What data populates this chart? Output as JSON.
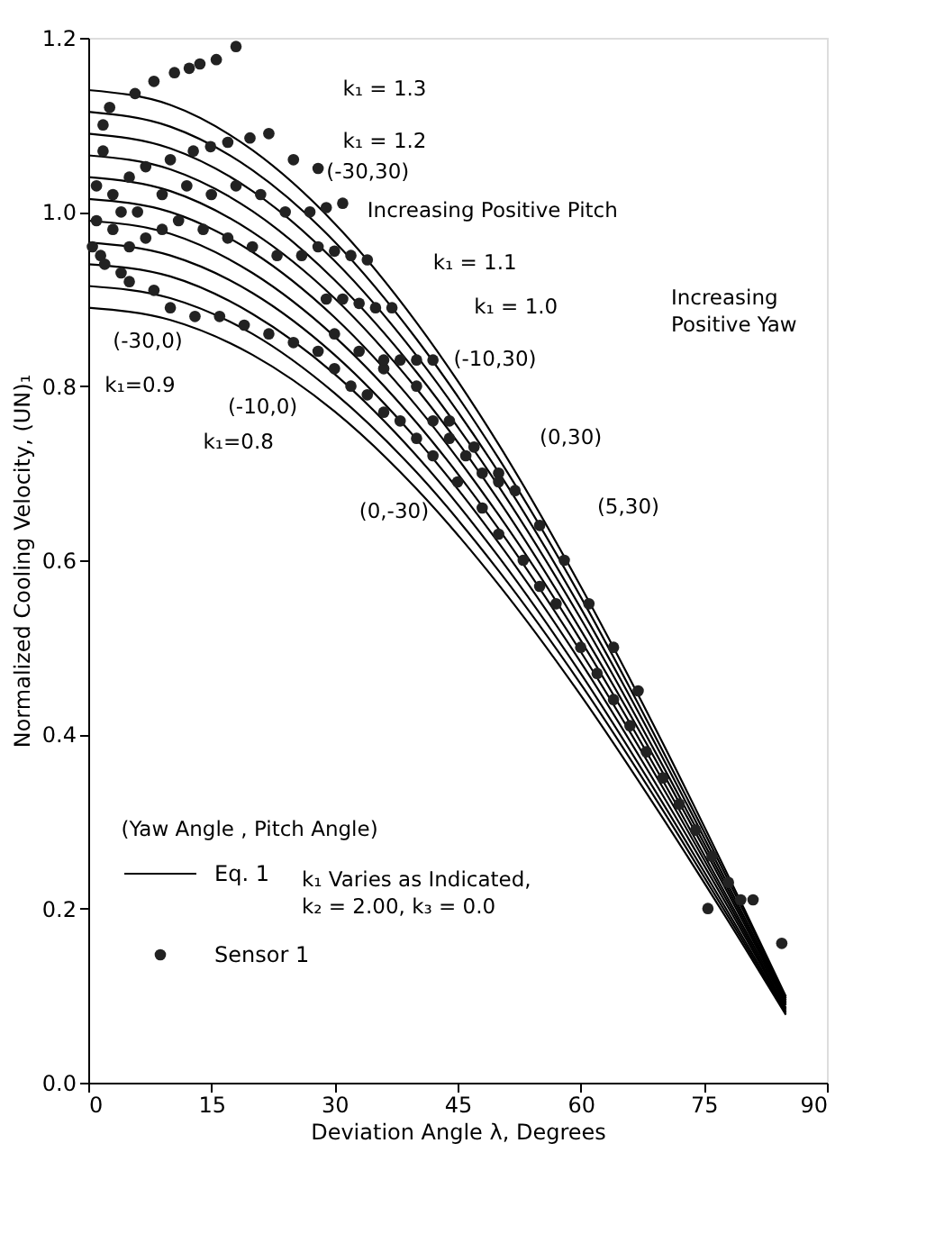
{
  "chart_data": {
    "type": "line",
    "xlabel": "Deviation Angle λ, Degrees",
    "ylabel": "Normalized Cooling Velocity, (UN)₁",
    "xlim": [
      0,
      90
    ],
    "xticks": [
      0,
      15,
      30,
      45,
      60,
      75,
      90
    ],
    "ylim": [
      0,
      1.2
    ],
    "yticks": [
      {
        "value": 0,
        "label": "0.0"
      },
      {
        "value": 0.2,
        "label": "0.2"
      },
      {
        "value": 0.4,
        "label": "0.4"
      },
      {
        "value": 0.6,
        "label": "0.6"
      },
      {
        "value": 0.8,
        "label": "0.8"
      },
      {
        "value": 1.0,
        "label": "1.0"
      },
      {
        "value": 1.2,
        "label": "1.2"
      }
    ],
    "grid": false,
    "legend": "bottom left",
    "line_style": "solid",
    "x": [
      0,
      10,
      20,
      30,
      40,
      50,
      60,
      70,
      80,
      85
    ],
    "series": [
      {
        "name": "Eq. 1",
        "color": "#000000",
        "values": [
          0.89,
          0.876,
          0.836,
          0.771,
          0.682,
          0.572,
          0.445,
          0.304,
          0.155,
          0.078
        ]
      },
      {
        "color": "#000000",
        "values": [
          0.915,
          0.901,
          0.86,
          0.792,
          0.701,
          0.588,
          0.458,
          0.313,
          0.159,
          0.08
        ]
      },
      {
        "color": "#000000",
        "values": [
          0.94,
          0.926,
          0.883,
          0.814,
          0.72,
          0.604,
          0.47,
          0.321,
          0.163,
          0.082
        ]
      },
      {
        "color": "#000000",
        "values": [
          0.965,
          0.95,
          0.907,
          0.836,
          0.739,
          0.62,
          0.483,
          0.33,
          0.168,
          0.084
        ]
      },
      {
        "color": "#000000",
        "values": [
          0.99,
          0.975,
          0.93,
          0.857,
          0.758,
          0.636,
          0.495,
          0.339,
          0.172,
          0.086
        ]
      },
      {
        "color": "#000000",
        "values": [
          1.015,
          1.0,
          0.954,
          0.879,
          0.777,
          0.652,
          0.508,
          0.347,
          0.176,
          0.089
        ]
      },
      {
        "color": "#000000",
        "values": [
          1.04,
          1.024,
          0.977,
          0.901,
          0.797,
          0.669,
          0.52,
          0.356,
          0.181,
          0.091
        ]
      },
      {
        "color": "#000000",
        "values": [
          1.065,
          1.049,
          1.001,
          0.922,
          0.816,
          0.685,
          0.533,
          0.364,
          0.185,
          0.093
        ]
      },
      {
        "color": "#000000",
        "values": [
          1.09,
          1.073,
          1.024,
          0.944,
          0.835,
          0.701,
          0.545,
          0.373,
          0.189,
          0.095
        ]
      },
      {
        "color": "#000000",
        "values": [
          1.115,
          1.098,
          1.048,
          0.966,
          0.854,
          0.717,
          0.558,
          0.381,
          0.194,
          0.097
        ]
      },
      {
        "color": "#000000",
        "values": [
          1.14,
          1.123,
          1.071,
          0.987,
          0.873,
          0.733,
          0.57,
          0.39,
          0.198,
          0.099
        ]
      },
      {
        "name": "Sensor 1",
        "type": "scatter",
        "marker": "circle",
        "color": "#222222",
        "x": [
          1.8,
          2.6,
          5.7,
          8,
          10.5,
          12.3,
          13.6,
          15.6,
          18,
          1.8,
          5,
          7,
          10,
          12.8,
          14.9,
          17,
          19.7,
          22,
          25,
          28,
          1,
          3,
          6,
          9,
          12,
          15,
          18,
          21,
          24,
          27,
          29,
          31,
          1,
          3,
          4,
          5,
          7,
          9,
          11,
          14,
          17,
          20,
          23,
          26,
          0.5,
          1.5,
          2,
          4,
          5,
          8,
          10,
          13,
          16,
          19,
          22,
          25,
          28,
          30,
          32,
          34,
          36,
          38,
          40,
          42,
          45,
          48,
          50,
          53,
          55,
          57,
          60,
          62,
          64,
          66,
          68,
          70,
          72,
          74,
          76,
          78,
          30,
          33,
          36,
          40,
          44,
          47,
          50,
          52,
          55,
          58,
          61,
          64,
          67,
          28,
          30,
          32,
          34,
          29,
          31,
          33,
          35,
          37,
          36,
          38,
          40,
          42,
          42,
          44,
          46,
          48,
          50,
          75.5,
          79.5,
          81,
          84.5
        ],
        "values": [
          1.1,
          1.12,
          1.136,
          1.15,
          1.16,
          1.165,
          1.17,
          1.175,
          1.19,
          1.07,
          1.04,
          1.052,
          1.06,
          1.07,
          1.075,
          1.08,
          1.085,
          1.09,
          1.06,
          1.05,
          1.03,
          1.02,
          1.0,
          1.02,
          1.03,
          1.02,
          1.03,
          1.02,
          1.0,
          1.0,
          1.005,
          1.01,
          0.99,
          0.98,
          1.0,
          0.96,
          0.97,
          0.98,
          0.99,
          0.98,
          0.97,
          0.96,
          0.95,
          0.95,
          0.96,
          0.95,
          0.94,
          0.93,
          0.92,
          0.91,
          0.89,
          0.88,
          0.88,
          0.87,
          0.86,
          0.85,
          0.84,
          0.82,
          0.8,
          0.79,
          0.77,
          0.76,
          0.74,
          0.72,
          0.69,
          0.66,
          0.63,
          0.6,
          0.57,
          0.55,
          0.5,
          0.47,
          0.44,
          0.41,
          0.38,
          0.35,
          0.32,
          0.29,
          0.26,
          0.23,
          0.86,
          0.84,
          0.82,
          0.8,
          0.76,
          0.73,
          0.7,
          0.68,
          0.64,
          0.6,
          0.55,
          0.5,
          0.45,
          0.96,
          0.955,
          0.95,
          0.945,
          0.9,
          0.9,
          0.895,
          0.89,
          0.89,
          0.83,
          0.83,
          0.83,
          0.83,
          0.76,
          0.74,
          0.72,
          0.7,
          0.69,
          0.2,
          0.21,
          0.21,
          0.16
        ]
      }
    ],
    "annotations": [
      "k₁ = 1.3",
      "k₁ = 1.2",
      "(-30,30)",
      "Increasing Positive Pitch",
      "k₁ = 1.1",
      "k₁ = 1.0",
      "(-10,30)",
      "Increasing\nPositive Yaw",
      "(0,30)",
      "(5,30)",
      "(0,-30)",
      "(-10,0)",
      "(-30,0)",
      "k₁=0.9",
      "k₁=0.8",
      "(Yaw Angle , Pitch Angle)",
      "k₁ Varies as Indicated,\nk₂ = 2.00, k₃ = 0.0"
    ]
  }
}
